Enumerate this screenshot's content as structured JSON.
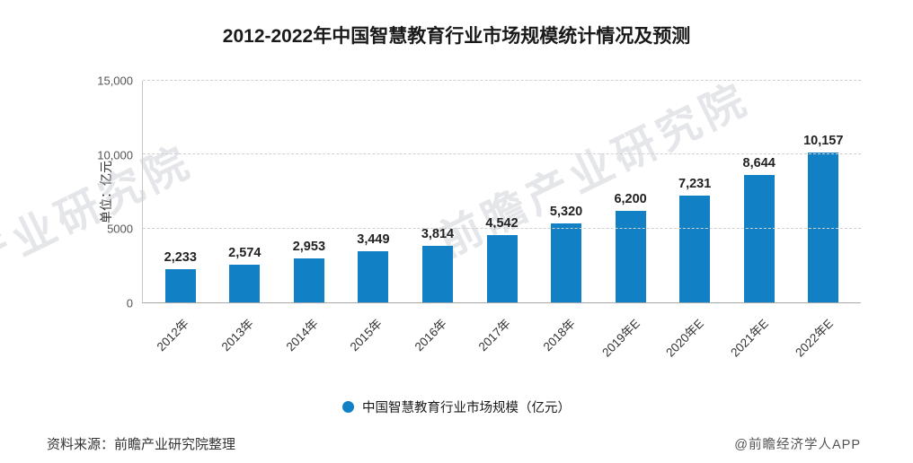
{
  "title": "2012-2022年中国智慧教育行业市场规模统计情况及预测",
  "chart_data": {
    "type": "bar",
    "title": "2012-2022年中国智慧教育行业市场规模统计情况及预测",
    "xlabel": "",
    "ylabel": "单位：亿元",
    "categories": [
      "2012年",
      "2013年",
      "2014年",
      "2015年",
      "2016年",
      "2017年",
      "2018年",
      "2019年E",
      "2020年E",
      "2021年E",
      "2022年E"
    ],
    "values": [
      2233,
      2574,
      2953,
      3449,
      3814,
      4542,
      5320,
      6200,
      7231,
      8644,
      10157
    ],
    "value_labels": [
      "2,233",
      "2,574",
      "2,953",
      "3,449",
      "3,814",
      "4,542",
      "5,320",
      "6,200",
      "7,231",
      "8,644",
      "10,157"
    ],
    "ylim": [
      0,
      15000
    ],
    "yticks": [
      {
        "value": 0,
        "label": "0"
      },
      {
        "value": 5000,
        "label": "5000"
      },
      {
        "value": 10000,
        "label": "10,000"
      },
      {
        "value": 15000,
        "label": "15,000"
      }
    ],
    "grid": "horizontal-dashed",
    "bar_color": "#1280c4",
    "legend_position": "bottom",
    "legend": [
      {
        "label": "中国智慧教育行业市场规模（亿元）",
        "color": "#1280c4"
      }
    ]
  },
  "footer": {
    "source": "资料来源：前瞻产业研究院整理",
    "credit": "@前瞻经济学人APP"
  },
  "watermark": {
    "text": "前瞻产业研究院"
  }
}
